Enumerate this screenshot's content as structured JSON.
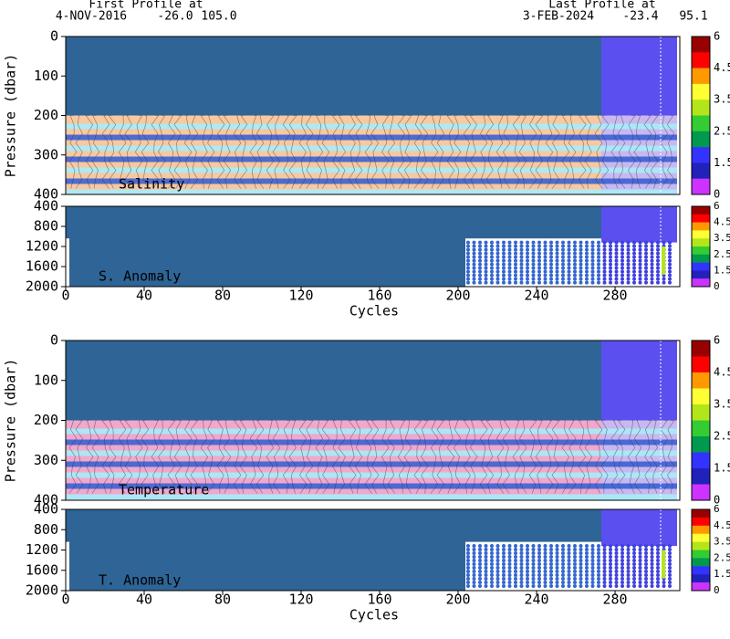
{
  "header": {
    "first_title": "First Profile at",
    "first_date": "4-NOV-2016",
    "first_lat": "-26.0",
    "first_lon": "105.0",
    "last_title": "Last Profile at",
    "last_date": "3-FEB-2024",
    "last_lat": "-23.4",
    "last_lon": "95.1"
  },
  "colorbar": {
    "ticks": [
      6,
      4.5,
      3.5,
      2.5,
      1.5,
      0
    ],
    "colors": [
      "#990000",
      "#ff0000",
      "#ff9900",
      "#ffff33",
      "#b3e61a",
      "#33cc33",
      "#00994d",
      "#3333ff",
      "#2222bb",
      "#cc33ff"
    ]
  },
  "chart_data": [
    {
      "type": "section",
      "label": "Salinity",
      "ylabel": "Pressure (dbar)",
      "ylim": [
        0,
        400
      ],
      "yticks": [
        0,
        100,
        200,
        300,
        400
      ],
      "xlim": [
        0,
        313
      ],
      "band_color": "#f8c8a0"
    },
    {
      "type": "anomaly",
      "label": "S. Anomaly",
      "ylim": [
        400,
        2000
      ],
      "yticks": [
        400,
        800,
        1200,
        1600,
        2000
      ],
      "xlim": [
        0,
        313
      ],
      "xticks": [
        0,
        40,
        80,
        120,
        160,
        200,
        240,
        280
      ],
      "xlabel": "Cycles"
    },
    {
      "type": "section",
      "label": "Temperature",
      "ylabel": "Pressure (dbar)",
      "ylim": [
        0,
        400
      ],
      "yticks": [
        0,
        100,
        200,
        300,
        400
      ],
      "xlim": [
        0,
        313
      ],
      "band_color": "#f0a8cc"
    },
    {
      "type": "anomaly",
      "label": "T. Anomaly",
      "ylim": [
        400,
        2000
      ],
      "yticks": [
        400,
        800,
        1200,
        1600,
        2000
      ],
      "xlim": [
        0,
        313
      ],
      "xticks": [
        0,
        40,
        80,
        120,
        160,
        200,
        240,
        280
      ],
      "xlabel": "Cycles"
    }
  ]
}
